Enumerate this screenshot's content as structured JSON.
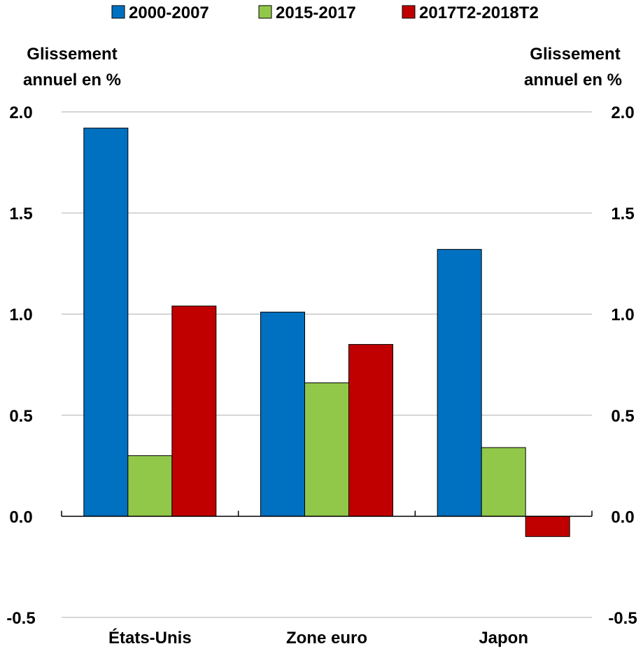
{
  "chart_data": {
    "type": "bar",
    "categories": [
      "États-Unis",
      "Zone euro",
      "Japon"
    ],
    "series": [
      {
        "name": "2000-2007",
        "color": "#0070c0",
        "values": [
          1.92,
          1.01,
          1.32
        ]
      },
      {
        "name": "2015-2017",
        "color": "#92c84a",
        "values": [
          0.3,
          0.66,
          0.34
        ]
      },
      {
        "name": "2017T2-2018T2",
        "color": "#c00000",
        "values": [
          1.04,
          0.85,
          -0.1
        ]
      }
    ],
    "ylabel_left": [
      "Glissement",
      "annuel en  %"
    ],
    "ylabel_right": [
      "Glissement",
      "annuel en  %"
    ],
    "ylim": [
      -0.5,
      2.0
    ],
    "yticks": [
      "2.0",
      "1.5",
      "1.0",
      "0.5",
      "0.0",
      "-0.5"
    ],
    "ytick_values": [
      2.0,
      1.5,
      1.0,
      0.5,
      0.0,
      -0.5
    ],
    "grid": true,
    "legend_position": "top"
  }
}
